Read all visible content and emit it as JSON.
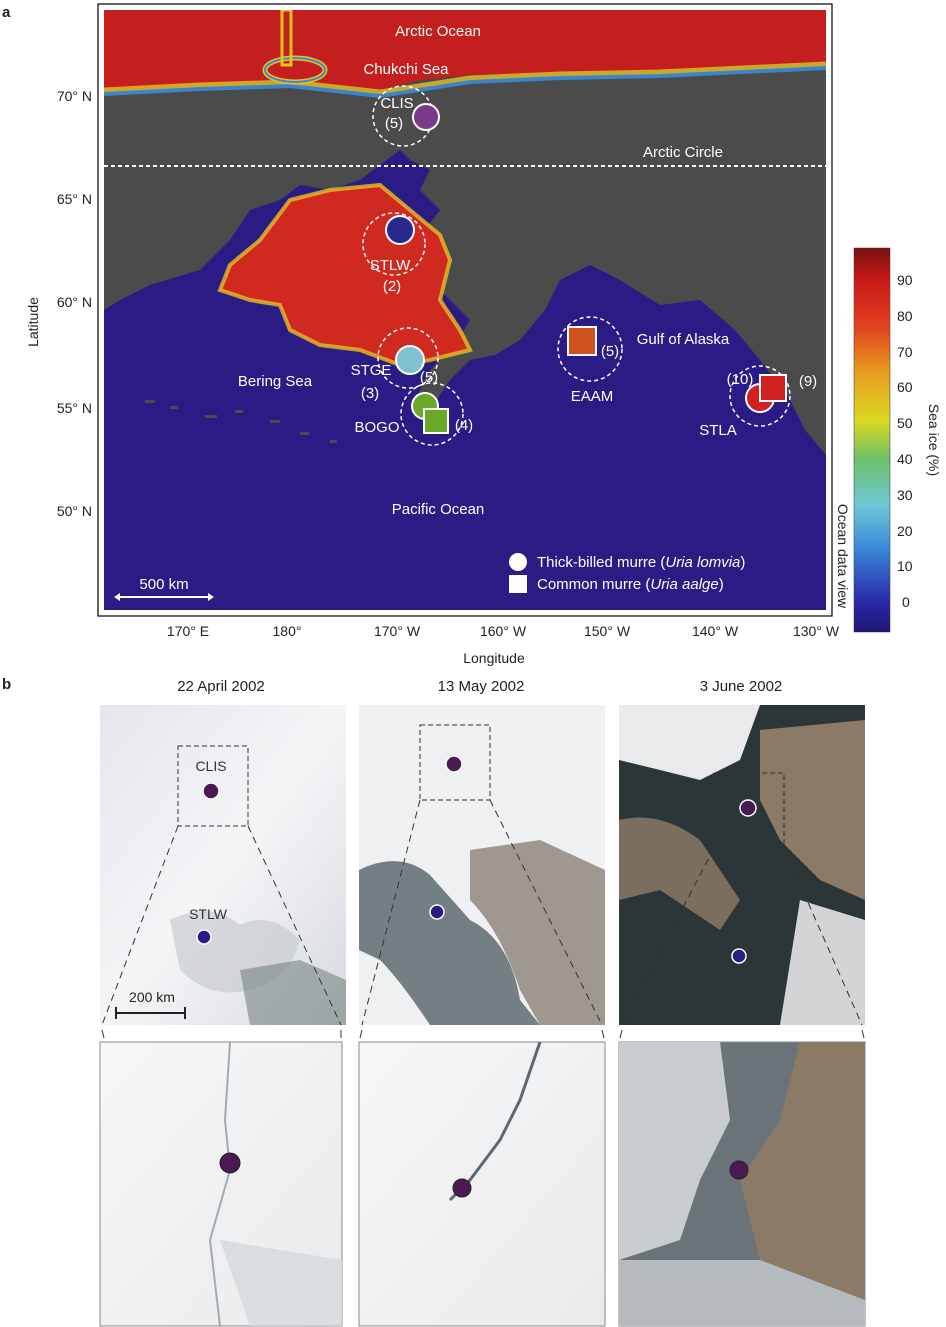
{
  "panel_a": {
    "letter": "a",
    "oceans": {
      "arctic": "Arctic Ocean",
      "chukchi": "Chukchi Sea",
      "bering": "Bering Sea",
      "gulf": "Gulf of Alaska",
      "pacific": "Pacific Ocean"
    },
    "arctic_circle": "Arctic Circle",
    "colonies": [
      {
        "code": "CLIS",
        "n_thick": "(5)"
      },
      {
        "code": "STLW",
        "n_thick": "(2)"
      },
      {
        "code": "STGE",
        "n_thick": "(5)",
        "n_common": "(3)"
      },
      {
        "code": "BOGO",
        "n_common": "(4)"
      },
      {
        "code": "EAAM",
        "n_common": "(5)"
      },
      {
        "code": "STLA",
        "n_thick": "(10)",
        "n_common": "(9)"
      }
    ],
    "lat_ticks": [
      "70° N",
      "65° N",
      "60° N",
      "55° N",
      "50° N"
    ],
    "lon_ticks": [
      "170° E",
      "180°",
      "170° W",
      "160° W",
      "150° W",
      "140° W",
      "130° W"
    ],
    "xlabel": "Longitude",
    "ylabel": "Latitude",
    "scale_bar": "500 km",
    "legend": {
      "thick_prefix": "Thick-billed murre (",
      "thick_species": "Uria lomvia",
      "common_prefix": "Common murre (",
      "common_species": "Uria aalge",
      "close": ")"
    },
    "colorbar": {
      "label": "Sea ice (%)",
      "ticks": [
        "90",
        "80",
        "70",
        "60",
        "50",
        "40",
        "30",
        "20",
        "10",
        "0"
      ],
      "range": [
        0,
        100
      ]
    },
    "credit": "Ocean data view"
  },
  "panel_b": {
    "letter": "b",
    "dates": [
      "22 April 2002",
      "13 May 2002",
      "3 June 2002"
    ],
    "labels": {
      "clis": "CLIS",
      "stlw": "STLW"
    },
    "scale_bar": "200 km"
  },
  "colors": {
    "ocean": "#2a1c84",
    "land": "#4a4a4a",
    "ice_high": "#c81e1e",
    "clis": "#7a3a8a",
    "stlw": "#2a2a8a",
    "stge": "#7ec2d0",
    "bogo": "#6aa82a",
    "eaam": "#d0501e",
    "stla": "#d02020",
    "sat_dot": "#4a1a52"
  }
}
